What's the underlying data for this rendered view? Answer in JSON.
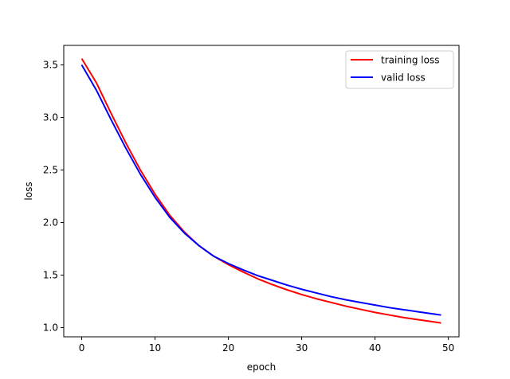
{
  "chart_data": {
    "type": "line",
    "title": "",
    "xlabel": "epoch",
    "ylabel": "loss",
    "xlim": [
      -2.45,
      51.45
    ],
    "ylim": [
      0.913,
      3.686
    ],
    "xticks": [
      "0",
      "10",
      "20",
      "30",
      "40",
      "50"
    ],
    "yticks": [
      "1.0",
      "1.5",
      "2.0",
      "2.5",
      "3.0",
      "3.5"
    ],
    "grid": false,
    "legend": "top-right",
    "x": [
      0,
      2,
      4,
      6,
      8,
      10,
      12,
      14,
      16,
      18,
      20,
      22,
      24,
      26,
      28,
      30,
      32,
      34,
      36,
      38,
      40,
      42,
      44,
      46,
      48,
      49
    ],
    "series": [
      {
        "name": "training loss",
        "color": "#ff0000",
        "values": [
          3.56,
          3.33,
          3.04,
          2.76,
          2.5,
          2.27,
          2.07,
          1.91,
          1.78,
          1.68,
          1.6,
          1.53,
          1.465,
          1.41,
          1.36,
          1.315,
          1.275,
          1.24,
          1.205,
          1.175,
          1.145,
          1.12,
          1.095,
          1.075,
          1.055,
          1.045
        ]
      },
      {
        "name": "valid loss",
        "color": "#0000ff",
        "values": [
          3.5,
          3.26,
          2.98,
          2.71,
          2.46,
          2.24,
          2.05,
          1.9,
          1.78,
          1.68,
          1.61,
          1.55,
          1.495,
          1.45,
          1.405,
          1.365,
          1.33,
          1.295,
          1.265,
          1.24,
          1.215,
          1.19,
          1.17,
          1.15,
          1.13,
          1.12
        ]
      }
    ]
  }
}
